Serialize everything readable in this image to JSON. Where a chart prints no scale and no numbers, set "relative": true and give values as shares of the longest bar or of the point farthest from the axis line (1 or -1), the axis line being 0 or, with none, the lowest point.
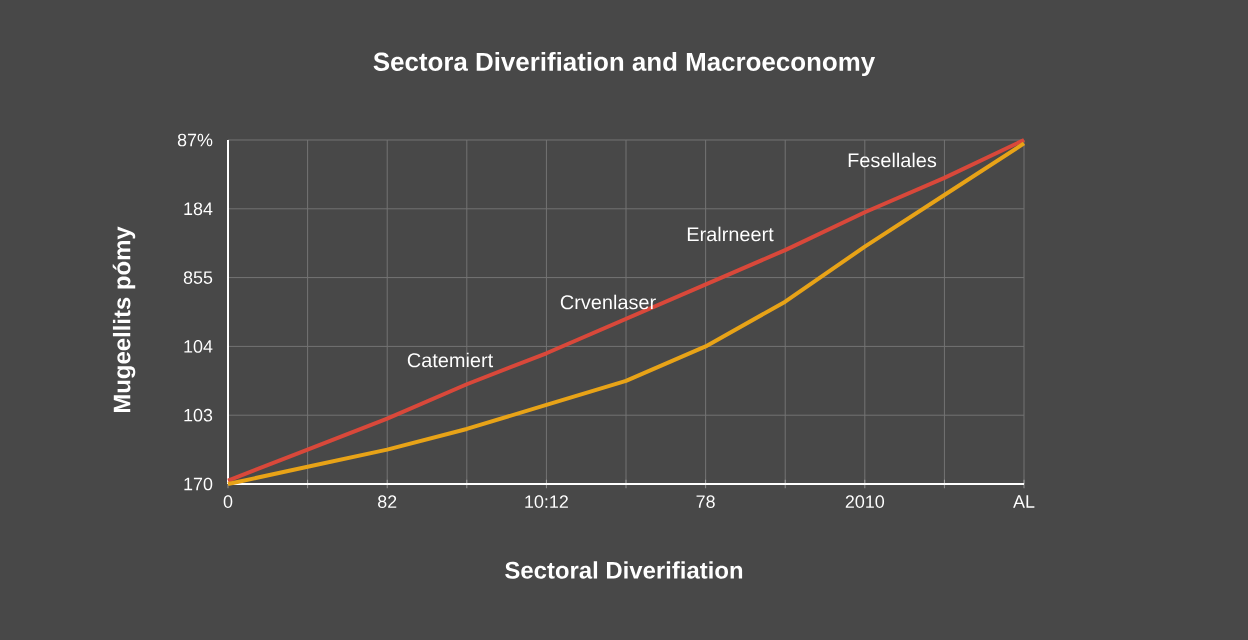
{
  "chart_data": {
    "type": "line",
    "title": "Sectora Diverifiation and Macroeconomy",
    "xlabel": "Sectoral Diverifiation",
    "ylabel": "Mugeellits pómy",
    "relative": true,
    "categories": [
      "0",
      null,
      "82",
      null,
      "10:12",
      null,
      "78",
      null,
      "2010",
      null,
      "AL"
    ],
    "grid": true,
    "series": [
      {
        "color": "#d9483a",
        "values": [
          0.01,
          0.1,
          0.19,
          0.29,
          0.38,
          0.48,
          0.58,
          0.68,
          0.79,
          0.89,
          1.0
        ]
      },
      {
        "color": "#e8a317",
        "values": [
          0,
          0.05,
          0.1,
          0.16,
          0.23,
          0.3,
          0.4,
          0.53,
          0.69,
          0.84,
          0.99
        ]
      }
    ],
    "annotations": [
      "Catemiert",
      "Crvenlaser",
      "Eralrneert",
      "Fesellales",
      "170",
      "103",
      "104",
      "855",
      "184",
      "87%"
    ]
  }
}
